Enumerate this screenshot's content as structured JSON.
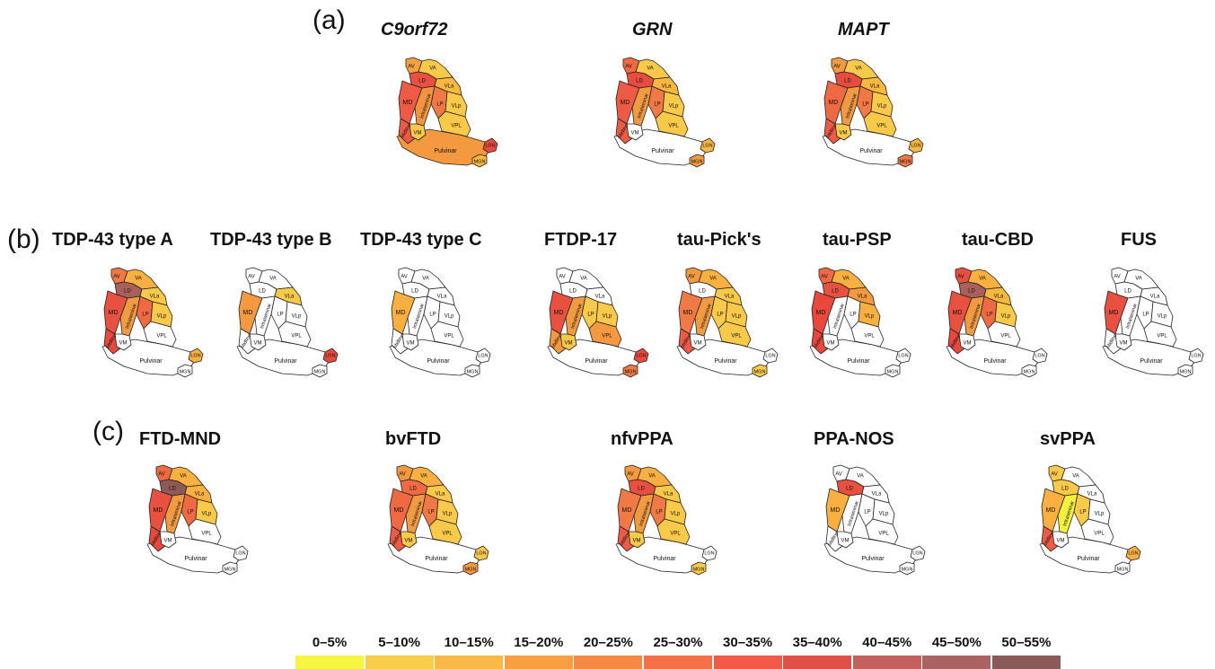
{
  "panels": {
    "a": {
      "label": "(a)",
      "maps": [
        {
          "title": "C9orf72",
          "italic": true,
          "fills": {
            "AV": "#f9a040",
            "VA": "#f9c94a",
            "LD": "#e8503f",
            "VLa": "#f6b840",
            "MD": "#ef5a45",
            "intra": "#f2943f",
            "LP": "#f07945",
            "VLp": "#f9c94a",
            "VPL": "#f9c94a",
            "VM": "#f9c94a",
            "midline": "#ed5b46",
            "pulvinar": "#f4993f",
            "LGN": "#e9493c",
            "MGN": "#f6b840"
          }
        },
        {
          "title": "GRN",
          "italic": true,
          "fills": {
            "AV": "#ef6a43",
            "VA": "#f9c94a",
            "LD": "#e84c3e",
            "VLa": "#f6b840",
            "MD": "#ef5a45",
            "intra": "#f09a42",
            "LP": "#f07945",
            "VLp": "#f9c94a",
            "VPL": "#f9c94a",
            "VM": "#ffffff",
            "midline": "#ed5b46",
            "pulvinar": "#ffffff",
            "LGN": "#f6b840",
            "MGN": "#f4993f"
          }
        },
        {
          "title": "MAPT",
          "italic": true,
          "fills": {
            "AV": "#f4993f",
            "VA": "#f9c94a",
            "LD": "#e84c3e",
            "VLa": "#f6b840",
            "MD": "#ef6a43",
            "intra": "#f09a42",
            "LP": "#f07945",
            "VLp": "#f9c94a",
            "VPL": "#f9c94a",
            "VM": "#f9c94a",
            "midline": "#ed5b46",
            "pulvinar": "#ffffff",
            "LGN": "#f6b840",
            "MGN": "#f07945"
          }
        }
      ]
    },
    "b": {
      "label": "(b)",
      "maps": [
        {
          "title": "TDP-43 type A",
          "italic": false,
          "fills": {
            "AV": "#f07945",
            "VA": "#f9b040",
            "LD": "#a9605a",
            "VLa": "#f9c94a",
            "MD": "#e8503f",
            "intra": "#f09a42",
            "LP": "#ef6a43",
            "VLp": "#f9c94a",
            "VPL": "#ffffff",
            "VM": "#ffffff",
            "midline": "#e9493c",
            "pulvinar": "#ffffff",
            "LGN": "#f9b040",
            "MGN": "#ffffff"
          }
        },
        {
          "title": "TDP-43 type B",
          "italic": false,
          "fills": {
            "AV": "#ffffff",
            "VA": "#ffffff",
            "LD": "#ffffff",
            "VLa": "#f9c94a",
            "MD": "#f4993f",
            "intra": "#ffffff",
            "LP": "#ffffff",
            "VLp": "#ffffff",
            "VPL": "#ffffff",
            "VM": "#ffffff",
            "midline": "#ffffff",
            "pulvinar": "#ffffff",
            "LGN": "#e9493c",
            "MGN": "#ffffff"
          }
        },
        {
          "title": "TDP-43 type C",
          "italic": false,
          "fills": {
            "AV": "#ffffff",
            "VA": "#ffffff",
            "LD": "#ffffff",
            "VLa": "#ffffff",
            "MD": "#f9b040",
            "intra": "#ffffff",
            "LP": "#ffffff",
            "VLp": "#ffffff",
            "VPL": "#ffffff",
            "VM": "#ffffff",
            "midline": "#ffffff",
            "pulvinar": "#ffffff",
            "LGN": "#ffffff",
            "MGN": "#ffffff"
          }
        },
        {
          "title": "FTDP-17",
          "italic": false,
          "fills": {
            "AV": "#ffffff",
            "VA": "#ffffff",
            "LD": "#ffffff",
            "VLa": "#ffffff",
            "MD": "#e8503f",
            "intra": "#f09a42",
            "LP": "#f9c94a",
            "VLp": "#f9c94a",
            "VPL": "#f4993f",
            "VM": "#f9c94a",
            "midline": "#f4993f",
            "pulvinar": "#ffffff",
            "LGN": "#e9493c",
            "MGN": "#f07945"
          }
        },
        {
          "title": "tau-Pick's",
          "italic": false,
          "fills": {
            "AV": "#f4993f",
            "VA": "#f9b040",
            "LD": "#ffffff",
            "VLa": "#f9c94a",
            "MD": "#f07945",
            "intra": "#f09a42",
            "LP": "#f9c94a",
            "VLp": "#f9c94a",
            "VPL": "#f9c94a",
            "VM": "#ffffff",
            "midline": "#ed5b46",
            "pulvinar": "#ffffff",
            "LGN": "#ffffff",
            "MGN": "#f9c94a"
          }
        },
        {
          "title": "tau-PSP",
          "italic": false,
          "fills": {
            "AV": "#ef6a43",
            "VA": "#f9b040",
            "LD": "#e8503f",
            "VLa": "#f4993f",
            "MD": "#e9493c",
            "intra": "#ffffff",
            "LP": "#ffffff",
            "VLp": "#f9b040",
            "VPL": "#ffffff",
            "VM": "#ffffff",
            "midline": "#e9493c",
            "pulvinar": "#ffffff",
            "LGN": "#ffffff",
            "MGN": "#ffffff"
          }
        },
        {
          "title": "tau-CBD",
          "italic": false,
          "fills": {
            "AV": "#e8503f",
            "VA": "#f9b040",
            "LD": "#a9605a",
            "VLa": "#f6b840",
            "MD": "#e8503f",
            "intra": "#f09a42",
            "LP": "#ef6a43",
            "VLp": "#f9c94a",
            "VPL": "#ffffff",
            "VM": "#ffffff",
            "midline": "#e9493c",
            "pulvinar": "#ffffff",
            "LGN": "#ffffff",
            "MGN": "#ffffff"
          }
        },
        {
          "title": "FUS",
          "italic": false,
          "fills": {
            "AV": "#ffffff",
            "VA": "#ffffff",
            "LD": "#ffffff",
            "VLa": "#ffffff",
            "MD": "#e8503f",
            "intra": "#ffffff",
            "LP": "#ffffff",
            "VLp": "#ffffff",
            "VPL": "#ffffff",
            "VM": "#ffffff",
            "midline": "#ffffff",
            "pulvinar": "#ffffff",
            "LGN": "#ffffff",
            "MGN": "#ffffff"
          }
        }
      ]
    },
    "c": {
      "label": "(c)",
      "maps": [
        {
          "title": "FTD-MND",
          "italic": false,
          "fills": {
            "AV": "#ef6a43",
            "VA": "#f9b040",
            "LD": "#8f5a55",
            "VLa": "#f9b040",
            "MD": "#e8503f",
            "intra": "#f09a42",
            "LP": "#ef6a43",
            "VLp": "#f9c94a",
            "VPL": "#ffffff",
            "VM": "#ffffff",
            "midline": "#e9493c",
            "pulvinar": "#ffffff",
            "LGN": "#ffffff",
            "MGN": "#ffffff"
          }
        },
        {
          "title": "bvFTD",
          "italic": false,
          "fills": {
            "AV": "#f4993f",
            "VA": "#f9b040",
            "LD": "#ef6a43",
            "VLa": "#f9c94a",
            "MD": "#ef6a43",
            "intra": "#f09a42",
            "LP": "#f07945",
            "VLp": "#f9c94a",
            "VPL": "#f9c94a",
            "VM": "#f9c94a",
            "midline": "#ed5b46",
            "pulvinar": "#ffffff",
            "LGN": "#f9c94a",
            "MGN": "#f4993f"
          }
        },
        {
          "title": "nfvPPA",
          "italic": false,
          "fills": {
            "AV": "#f4993f",
            "VA": "#f9b040",
            "LD": "#e8503f",
            "VLa": "#f9c94a",
            "MD": "#f07945",
            "intra": "#f09a42",
            "LP": "#f07945",
            "VLp": "#f9c94a",
            "VPL": "#f9c94a",
            "VM": "#f9c94a",
            "midline": "#ed5b46",
            "pulvinar": "#ffffff",
            "LGN": "#ffffff",
            "MGN": "#f9c94a"
          }
        },
        {
          "title": "PPA-NOS",
          "italic": false,
          "fills": {
            "AV": "#ffffff",
            "VA": "#ffffff",
            "LD": "#e8503f",
            "VLa": "#ffffff",
            "MD": "#f9b040",
            "intra": "#ffffff",
            "LP": "#ffffff",
            "VLp": "#ffffff",
            "VPL": "#ffffff",
            "VM": "#ffffff",
            "midline": "#ffffff",
            "pulvinar": "#ffffff",
            "LGN": "#ffffff",
            "MGN": "#ffffff"
          }
        },
        {
          "title": "svPPA",
          "italic": false,
          "fills": {
            "AV": "#f9c94a",
            "VA": "#ffffff",
            "LD": "#f9c94a",
            "VLa": "#ffffff",
            "MD": "#f9b040",
            "intra": "#f4f040",
            "LP": "#f9c94a",
            "VLp": "#ffffff",
            "VPL": "#ffffff",
            "VM": "#ffffff",
            "midline": "#ed5b46",
            "pulvinar": "#ffffff",
            "LGN": "#f9b040",
            "MGN": "#ffffff"
          }
        }
      ]
    }
  },
  "nucleus_labels": {
    "AV": "AV",
    "VA": "VA",
    "LD": "LD",
    "VLa": "VLa",
    "MD": "MD",
    "intra": "Intralaminar",
    "LP": "LP",
    "VLp": "VLp",
    "VPL": "VPL",
    "VM": "VM",
    "midline": "Midline",
    "pulvinar": "Pulvinar",
    "LGN": "LGN",
    "MGN": "MGN"
  },
  "legend": [
    {
      "label": "0–5%",
      "color": "#f5f542"
    },
    {
      "label": "5–10%",
      "color": "#f8cd49"
    },
    {
      "label": "10–15%",
      "color": "#f9b847"
    },
    {
      "label": "15–20%",
      "color": "#f7a043"
    },
    {
      "label": "20–25%",
      "color": "#f58a45"
    },
    {
      "label": "25–30%",
      "color": "#f47049"
    },
    {
      "label": "30–35%",
      "color": "#f05a48"
    },
    {
      "label": "35–40%",
      "color": "#e04f48"
    },
    {
      "label": "40–45%",
      "color": "#c4605e"
    },
    {
      "label": "45–50%",
      "color": "#ab6262"
    },
    {
      "label": "50–55%",
      "color": "#8a5a58"
    }
  ]
}
